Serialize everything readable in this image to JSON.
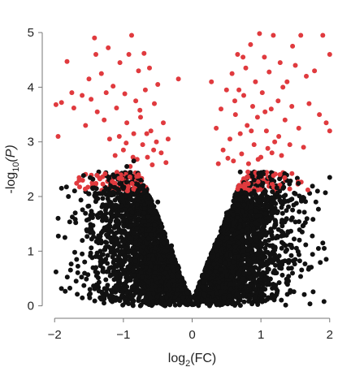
{
  "chart_data": {
    "type": "scatter",
    "title": "",
    "xlabel": {
      "prefix": "log",
      "sub": "2",
      "suffix": "(FC)"
    },
    "ylabel": {
      "prefix": "-log",
      "sub": "10",
      "suffix": "(P)"
    },
    "xlim": [
      -2.05,
      2.05
    ],
    "ylim": [
      -0.05,
      5.15
    ],
    "xticks": [
      -2,
      -1,
      0,
      1,
      2
    ],
    "xtick_labels": [
      "−2",
      "−1",
      "0",
      "1",
      "2"
    ],
    "yticks": [
      0,
      1,
      2,
      3,
      4,
      5
    ],
    "ytick_labels": [
      "0",
      "1",
      "2",
      "3",
      "4",
      "5"
    ],
    "grid": false,
    "legend": "none",
    "significance_threshold": 2.1,
    "colors": {
      "not_significant": "#111111",
      "significant": "#e03a3e"
    },
    "series": [
      {
        "color_key": "significant",
        "points": [
          [
            -1.98,
            3.68
          ],
          [
            -1.95,
            3.1
          ],
          [
            -1.9,
            3.72
          ],
          [
            -1.82,
            4.47
          ],
          [
            -1.75,
            3.9
          ],
          [
            -1.72,
            3.62
          ],
          [
            -1.6,
            3.85
          ],
          [
            -1.55,
            3.3
          ],
          [
            -1.5,
            4.15
          ],
          [
            -1.47,
            3.78
          ],
          [
            -1.42,
            4.9
          ],
          [
            -1.4,
            4.6
          ],
          [
            -1.38,
            3.55
          ],
          [
            -1.32,
            4.25
          ],
          [
            -1.28,
            3.4
          ],
          [
            -1.22,
            4.72
          ],
          [
            -1.2,
            3.05
          ],
          [
            -1.15,
            4.02
          ],
          [
            -1.1,
            3.62
          ],
          [
            -1.05,
            4.45
          ],
          [
            -1.0,
            2.85
          ],
          [
            -0.98,
            3.88
          ],
          [
            -0.95,
            3.35
          ],
          [
            -0.92,
            4.6
          ],
          [
            -0.9,
            2.55
          ],
          [
            -0.88,
            4.95
          ],
          [
            -0.85,
            3.15
          ],
          [
            -0.82,
            3.75
          ],
          [
            -0.8,
            2.68
          ],
          [
            -0.78,
            4.3
          ],
          [
            -0.75,
            3.45
          ],
          [
            -0.72,
            2.95
          ],
          [
            -0.7,
            4.62
          ],
          [
            -0.68,
            3.95
          ],
          [
            -0.65,
            2.72
          ],
          [
            -0.62,
            4.35
          ],
          [
            -0.6,
            3.2
          ],
          [
            -0.58,
            2.58
          ],
          [
            -0.55,
            3.7
          ],
          [
            -0.52,
            3.0
          ],
          [
            -0.5,
            4.05
          ],
          [
            -0.45,
            2.8
          ],
          [
            -0.42,
            3.35
          ],
          [
            -0.38,
            2.62
          ],
          [
            -0.35,
            3.05
          ],
          [
            -0.2,
            4.15
          ],
          [
            -1.12,
            2.75
          ],
          [
            -1.06,
            3.1
          ],
          [
            -0.96,
            2.98
          ],
          [
            -0.86,
            2.72
          ],
          [
            -0.76,
            3.58
          ],
          [
            -0.66,
            3.15
          ],
          [
            -0.56,
            2.85
          ],
          [
            -1.25,
            3.9
          ],
          [
            0.28,
            4.1
          ],
          [
            0.35,
            3.25
          ],
          [
            0.38,
            2.6
          ],
          [
            0.42,
            3.6
          ],
          [
            0.45,
            2.85
          ],
          [
            0.5,
            3.95
          ],
          [
            0.55,
            3.05
          ],
          [
            0.58,
            4.25
          ],
          [
            0.6,
            2.65
          ],
          [
            0.63,
            3.5
          ],
          [
            0.66,
            4.6
          ],
          [
            0.7,
            3.15
          ],
          [
            0.72,
            2.78
          ],
          [
            0.75,
            3.85
          ],
          [
            0.78,
            4.35
          ],
          [
            0.8,
            3.3
          ],
          [
            0.82,
            2.6
          ],
          [
            0.85,
            4.78
          ],
          [
            0.88,
            3.65
          ],
          [
            0.9,
            2.95
          ],
          [
            0.92,
            4.1
          ],
          [
            0.95,
            3.45
          ],
          [
            0.98,
            4.98
          ],
          [
            1.0,
            2.72
          ],
          [
            1.02,
            3.9
          ],
          [
            1.05,
            4.55
          ],
          [
            1.08,
            3.2
          ],
          [
            1.1,
            2.88
          ],
          [
            1.12,
            4.28
          ],
          [
            1.15,
            3.6
          ],
          [
            1.18,
            4.95
          ],
          [
            1.2,
            3.0
          ],
          [
            1.25,
            3.75
          ],
          [
            1.28,
            4.45
          ],
          [
            1.3,
            2.75
          ],
          [
            1.35,
            3.4
          ],
          [
            1.38,
            4.1
          ],
          [
            1.42,
            2.95
          ],
          [
            1.45,
            3.65
          ],
          [
            1.5,
            4.4
          ],
          [
            1.55,
            3.25
          ],
          [
            1.58,
            4.95
          ],
          [
            1.62,
            2.9
          ],
          [
            1.7,
            3.7
          ],
          [
            1.78,
            4.3
          ],
          [
            1.85,
            3.5
          ],
          [
            1.9,
            4.95
          ],
          [
            1.95,
            3.35
          ],
          [
            2.0,
            4.6
          ],
          [
            2.0,
            3.2
          ],
          [
            0.52,
            2.7
          ],
          [
            0.68,
            3.95
          ],
          [
            0.86,
            3.2
          ],
          [
            0.96,
            2.68
          ],
          [
            1.06,
            3.55
          ],
          [
            1.16,
            2.8
          ],
          [
            1.26,
            3.1
          ],
          [
            1.32,
            4.0
          ],
          [
            0.62,
            3.75
          ],
          [
            0.74,
            4.55
          ],
          [
            1.46,
            4.75
          ],
          [
            1.66,
            4.2
          ]
        ]
      },
      {
        "color_key": "not_significant",
        "points": [
          [
            -1.98,
            0.62
          ],
          [
            -1.95,
            1.6
          ],
          [
            -1.9,
            2.15
          ],
          [
            -1.85,
            1.25
          ],
          [
            -1.8,
            2.0
          ],
          [
            -1.7,
            1.7
          ],
          [
            -1.6,
            0.95
          ],
          [
            -1.5,
            2.05
          ],
          [
            -1.45,
            1.35
          ],
          [
            -1.4,
            0.7
          ],
          [
            -1.3,
            1.85
          ],
          [
            -1.2,
            2.05
          ],
          [
            -1.1,
            1.15
          ],
          [
            -1.0,
            1.55
          ],
          [
            -0.9,
            1.95
          ],
          [
            -0.8,
            1.05
          ],
          [
            -0.7,
            1.7
          ],
          [
            -0.6,
            1.3
          ],
          [
            -0.5,
            1.9
          ],
          [
            -0.45,
            0.85
          ],
          [
            -0.3,
            1.1
          ],
          [
            0.35,
            1.0
          ],
          [
            0.5,
            1.7
          ],
          [
            0.6,
            0.8
          ],
          [
            0.7,
            1.95
          ],
          [
            0.8,
            1.4
          ],
          [
            0.9,
            1.1
          ],
          [
            1.0,
            2.0
          ],
          [
            1.1,
            1.6
          ],
          [
            1.2,
            0.9
          ],
          [
            1.3,
            1.8
          ],
          [
            1.4,
            0.45
          ],
          [
            1.5,
            2.05
          ],
          [
            1.6,
            1.35
          ],
          [
            1.7,
            0.7
          ],
          [
            1.8,
            1.9
          ],
          [
            1.9,
            1.15
          ],
          [
            1.95,
            0.85
          ],
          [
            2.0,
            2.35
          ],
          [
            -0.95,
            2.55
          ],
          [
            -0.85,
            2.65
          ],
          [
            0.7,
            2.45
          ],
          [
            0.9,
            2.3
          ],
          [
            0.15,
            0.35
          ],
          [
            -0.15,
            0.3
          ],
          [
            0.0,
            0.02
          ],
          [
            -0.05,
            0.1
          ],
          [
            0.05,
            0.12
          ]
        ]
      }
    ]
  }
}
